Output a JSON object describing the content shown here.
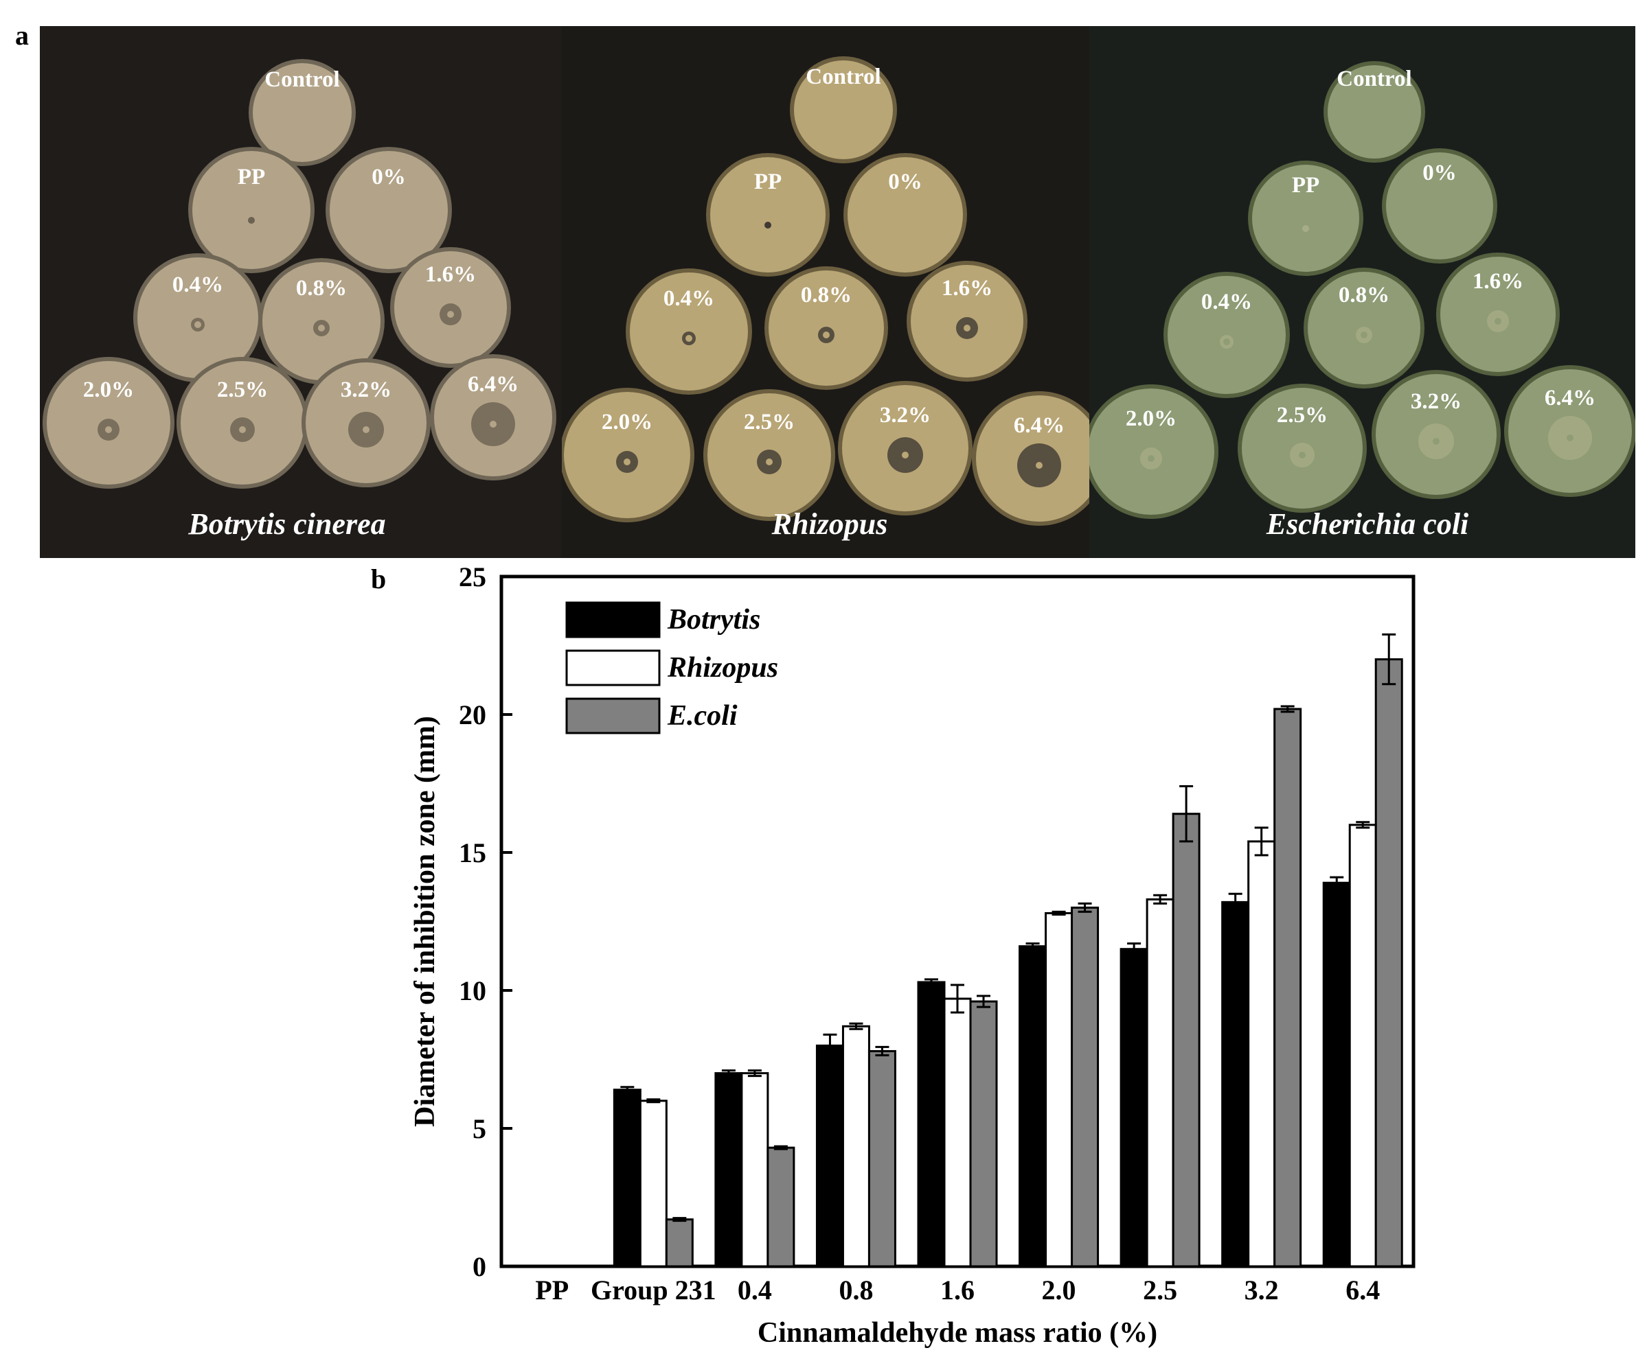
{
  "panel_a": {
    "label": "a",
    "photos": [
      {
        "species": "Botrytis cinerea",
        "plates": [
          "Control",
          "PP",
          "0%",
          "0.4%",
          "0.8%",
          "1.6%",
          "2.0%",
          "2.5%",
          "3.2%",
          "6.4%"
        ],
        "colors": {
          "plate": "#b3a489",
          "rim": "#6f6656",
          "zone": "#6c6251"
        }
      },
      {
        "species": "Rhizopus",
        "plates": [
          "Control",
          "PP",
          "0%",
          "0.4%",
          "0.8%",
          "1.6%",
          "2.0%",
          "2.5%",
          "3.2%",
          "6.4%"
        ],
        "colors": {
          "plate": "#b9a676",
          "rim": "#6c5f3f",
          "zone": "#3f3a33"
        }
      },
      {
        "species": "Escherichia coli",
        "plates": [
          "Control",
          "PP",
          "0%",
          "0.4%",
          "0.8%",
          "1.6%",
          "2.0%",
          "2.5%",
          "3.2%",
          "6.4%"
        ],
        "colors": {
          "plate": "#8f9c76",
          "rim": "#55603f",
          "zone": "#a6ad86"
        }
      }
    ]
  },
  "panel_b": {
    "label": "b"
  },
  "chart_data": {
    "type": "bar",
    "categories": [
      "PP",
      "Group 231",
      "0.4",
      "0.8",
      "1.6",
      "2.0",
      "2.5",
      "3.2",
      "6.4"
    ],
    "xlabel": "Cinnamaldehyde mass ratio (%)",
    "ylabel": "Diameter of inhibition zone (mm)",
    "ylim": [
      0,
      25
    ],
    "yticks": [
      0,
      5,
      10,
      15,
      20,
      25
    ],
    "legend_position": "top-left",
    "series": [
      {
        "name": "Botrytis",
        "color": "#000000",
        "values": [
          0,
          6.4,
          7.0,
          8.0,
          10.3,
          11.6,
          11.5,
          13.2,
          13.9
        ],
        "errors": [
          0,
          0.1,
          0.1,
          0.4,
          0.1,
          0.1,
          0.2,
          0.3,
          0.2
        ]
      },
      {
        "name": "Rhizopus",
        "color": "#ffffff",
        "values": [
          0,
          6.0,
          7.0,
          8.7,
          9.7,
          12.8,
          13.3,
          15.4,
          16.0
        ],
        "errors": [
          0,
          0.05,
          0.1,
          0.1,
          0.5,
          0.05,
          0.15,
          0.5,
          0.1
        ]
      },
      {
        "name": "E.coli",
        "color": "#808080",
        "values": [
          0,
          1.7,
          4.3,
          7.8,
          9.6,
          13.0,
          16.4,
          20.2,
          22.0
        ],
        "errors": [
          0,
          0.05,
          0.05,
          0.15,
          0.2,
          0.15,
          1.0,
          0.1,
          0.9
        ]
      }
    ]
  }
}
